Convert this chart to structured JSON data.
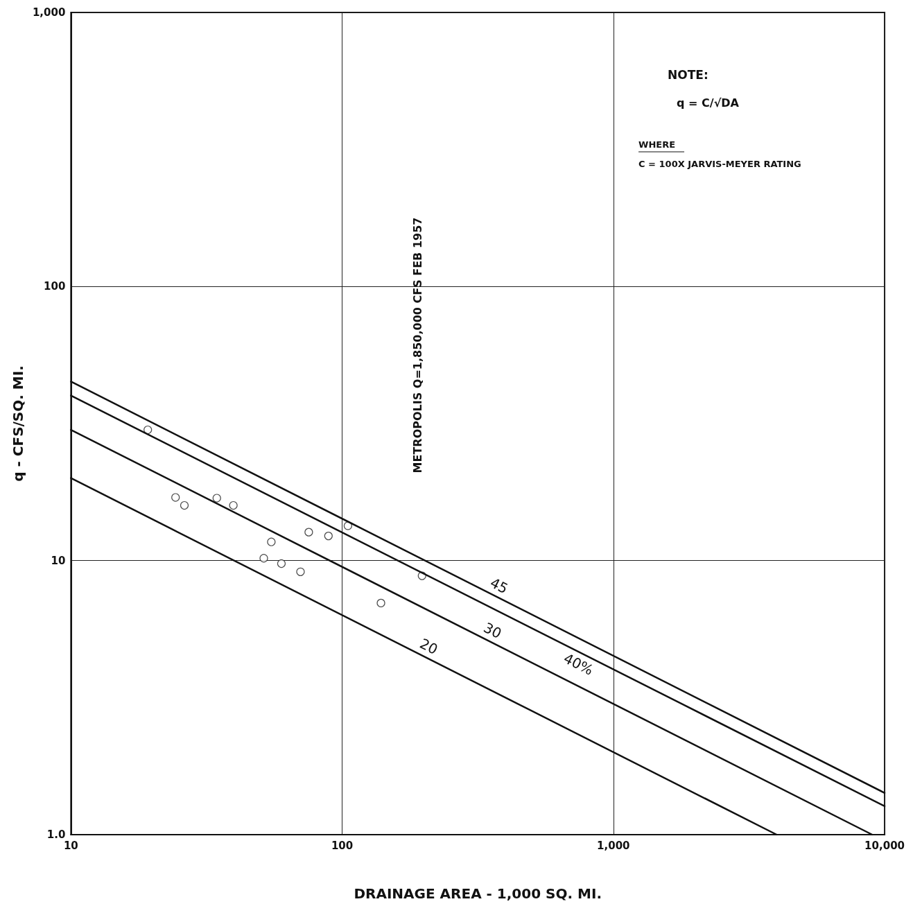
{
  "chart_data": {
    "type": "scatter",
    "xlabel": "DRAINAGE AREA - 1,000 SQ. MI.",
    "ylabel": "q - CFS/SQ. MI.",
    "log": "xy",
    "xlim": [
      10,
      10000
    ],
    "xticks": [
      10,
      100,
      {
        "value": 1000,
        "label": "1,000"
      },
      {
        "value": 10000,
        "label": "10,000"
      }
    ],
    "ylim": [
      1,
      1000
    ],
    "yticks": [
      {
        "value": 1,
        "label": "1.0"
      },
      10,
      100,
      {
        "value": 1000,
        "label": "1,000"
      }
    ],
    "grid": true,
    "legend": false,
    "series": [
      {
        "marker": "circle",
        "color": "#222222",
        "x": [
          19.2,
          24.3,
          26.2,
          34.5,
          39.7,
          51.4,
          54.8,
          59.7,
          70.2,
          75.3,
          89.0,
          105,
          139,
          197
        ],
        "values": [
          30.0,
          17.0,
          15.9,
          16.9,
          15.9,
          10.2,
          11.7,
          9.75,
          9.1,
          12.7,
          12.3,
          13.4,
          7.0,
          8.8
        ]
      },
      {
        "type": "line",
        "name": "45",
        "marker": "none",
        "line_style": "solid",
        "color": "#111111",
        "x": [
          10,
          10000
        ],
        "values": [
          45,
          1.42
        ]
      },
      {
        "type": "line",
        "name": "40%",
        "marker": "none",
        "line_style": "solid",
        "color": "#111111",
        "x": [
          10,
          10000
        ],
        "values": [
          40,
          1.27
        ]
      },
      {
        "type": "line",
        "name": "30",
        "marker": "none",
        "line_style": "solid",
        "color": "#111111",
        "x": [
          10,
          9000
        ],
        "values": [
          30,
          1
        ]
      },
      {
        "type": "line",
        "name": "20",
        "marker": "none",
        "line_style": "solid",
        "color": "#111111",
        "x": [
          10,
          4000
        ],
        "values": [
          20,
          1
        ]
      }
    ],
    "annotations": [
      "METROPOLIS Q=1,850,000 CFS FEB 1957",
      "NOTE:",
      "q = C/√DA",
      "WHERE",
      "C = 100X JARVIS-MEYER RATING"
    ]
  }
}
